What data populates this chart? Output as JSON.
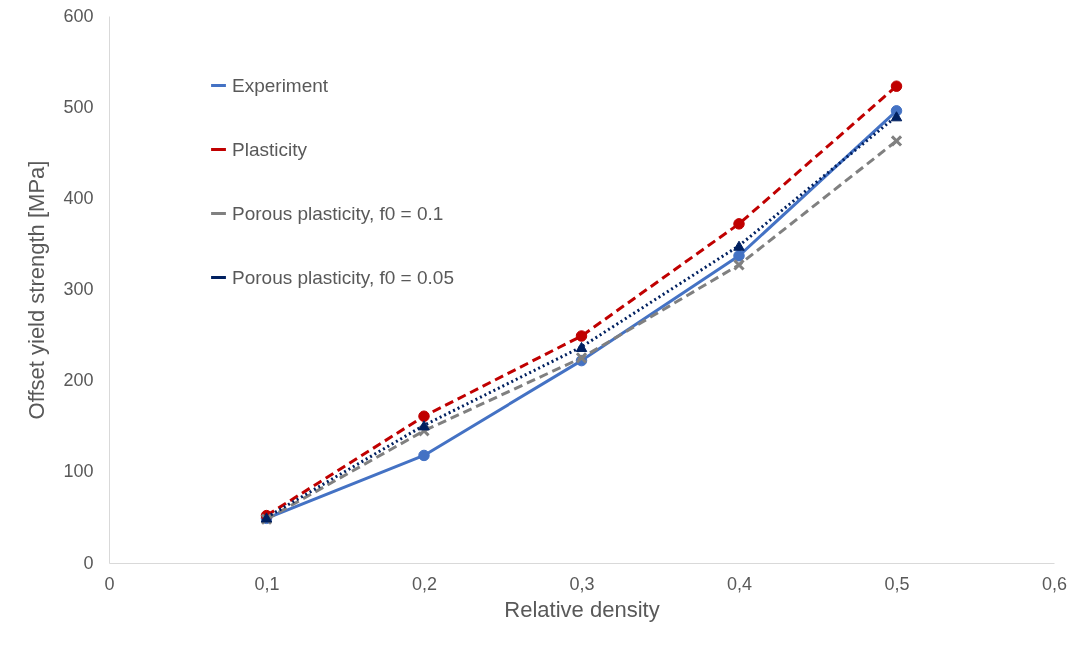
{
  "chart_data": {
    "type": "line",
    "xlabel": "Relative density",
    "ylabel": "Offset yield strength [MPa]",
    "x": [
      0.1,
      0.2,
      0.3,
      0.4,
      0.5
    ],
    "series": [
      {
        "name": "Experiment",
        "color": "#4472c4",
        "values": [
          49,
          118,
          222,
          337,
          496
        ],
        "marker": "circle",
        "line_style": "solid"
      },
      {
        "name": "Plasticity",
        "color": "#c00000",
        "values": [
          52,
          161,
          249,
          372,
          523
        ],
        "marker": "circle",
        "line_style": "dashed"
      },
      {
        "name": "Porous plasticity, f0 = 0.1",
        "color": "#808080",
        "values": [
          48,
          145,
          225,
          327,
          463
        ],
        "marker": "cross",
        "line_style": "dashed"
      },
      {
        "name": "Porous plasticity, f0 = 0.05",
        "color": "#002060",
        "values": [
          50,
          151,
          237,
          348,
          490
        ],
        "marker": "triangle",
        "line_style": "dotted"
      }
    ],
    "xlim": [
      0,
      0.6
    ],
    "xticks": [
      {
        "value": 0,
        "label": "0"
      },
      {
        "value": 0.1,
        "label": "0,1"
      },
      {
        "value": 0.2,
        "label": "0,2"
      },
      {
        "value": 0.3,
        "label": "0,3"
      },
      {
        "value": 0.4,
        "label": "0,4"
      },
      {
        "value": 0.5,
        "label": "0,5"
      },
      {
        "value": 0.6,
        "label": "0,6"
      }
    ],
    "ylim": [
      0,
      600
    ],
    "yticks": [
      0,
      100,
      200,
      300,
      400,
      500,
      600
    ],
    "grid": false,
    "legend": "top left"
  }
}
